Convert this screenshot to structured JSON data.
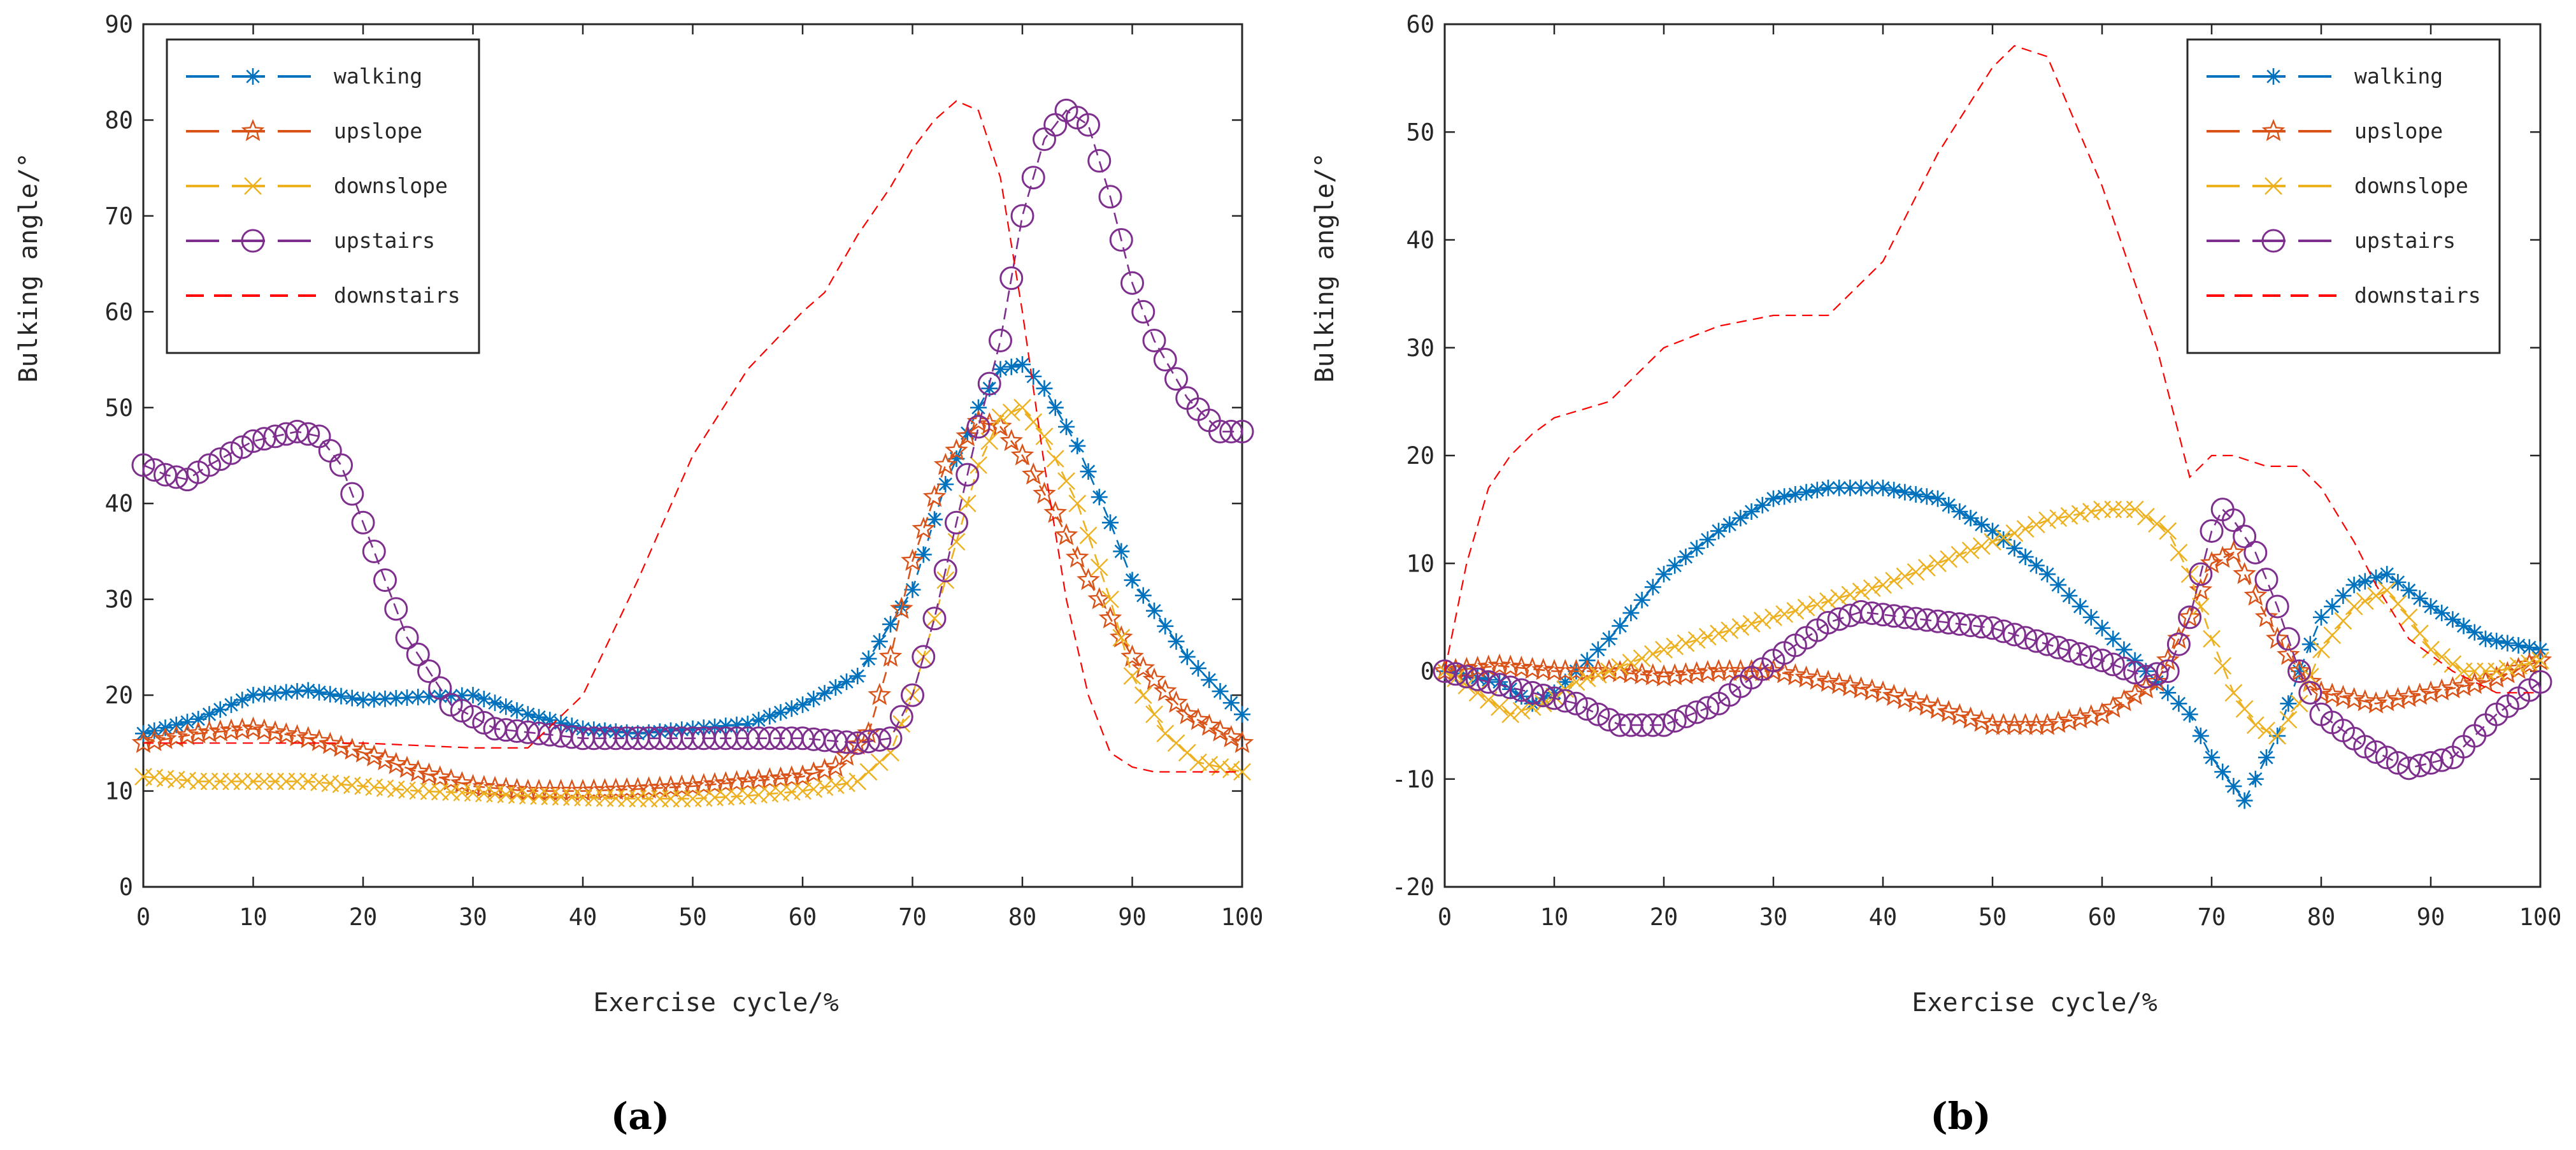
{
  "colors": {
    "walking": "#0072BD",
    "upslope": "#D95319",
    "downslope": "#EDB120",
    "upstairs": "#7E2F8E",
    "downstairs": "#FF0000",
    "axis": "#262626"
  },
  "chart_data": [
    {
      "type": "line",
      "panel_label": "(a)",
      "xlabel": "Exercise cycle/%",
      "ylabel": "Bulking angle/°",
      "xlim": [
        0,
        100
      ],
      "ylim": [
        0,
        90
      ],
      "xticks": [
        "0",
        "10",
        "20",
        "30",
        "40",
        "50",
        "60",
        "70",
        "80",
        "90",
        "100"
      ],
      "yticks": [
        "0",
        "10",
        "20",
        "30",
        "40",
        "50",
        "60",
        "70",
        "80",
        "90"
      ],
      "grid": false,
      "legend_position": "top-left",
      "series": [
        {
          "name": "walking",
          "marker": "asterisk",
          "line": "dashed",
          "x": [
            0,
            5,
            10,
            15,
            20,
            25,
            30,
            35,
            40,
            45,
            50,
            55,
            60,
            65,
            70,
            73,
            76,
            78,
            80,
            82,
            85,
            88,
            90,
            95,
            100
          ],
          "y": [
            16,
            17.5,
            20,
            20.5,
            19.5,
            19.8,
            20,
            18,
            16.5,
            16,
            16.5,
            17,
            19,
            22,
            31,
            42,
            50,
            54,
            54.5,
            52,
            46,
            38,
            32,
            24,
            18
          ]
        },
        {
          "name": "upslope",
          "marker": "pentagram",
          "line": "dashed",
          "x": [
            0,
            5,
            10,
            15,
            20,
            25,
            30,
            35,
            40,
            45,
            50,
            55,
            60,
            63,
            66,
            68,
            70,
            73,
            76,
            78,
            80,
            83,
            86,
            90,
            95,
            100
          ],
          "y": [
            15,
            16,
            16.5,
            15.5,
            14,
            12,
            10.5,
            10,
            10,
            10.2,
            10.5,
            11,
            11.5,
            12.5,
            16,
            24,
            34,
            44,
            48.5,
            48,
            45,
            39,
            32,
            24,
            18,
            15
          ]
        },
        {
          "name": "downslope",
          "marker": "x",
          "line": "dashed",
          "x": [
            0,
            5,
            10,
            15,
            20,
            25,
            30,
            35,
            40,
            45,
            50,
            55,
            60,
            65,
            68,
            70,
            73,
            76,
            78,
            80,
            82,
            85,
            88,
            90,
            93,
            96,
            100
          ],
          "y": [
            11.5,
            11,
            11,
            11,
            10.5,
            10,
            9.8,
            9.5,
            9.3,
            9.2,
            9.2,
            9.5,
            10,
            11,
            14,
            20,
            32,
            44,
            49,
            50,
            47,
            40,
            30,
            22,
            16,
            13,
            12
          ]
        },
        {
          "name": "upstairs",
          "marker": "circle",
          "line": "dashed",
          "x": [
            0,
            2,
            4,
            6,
            10,
            14,
            16,
            18,
            20,
            24,
            28,
            32,
            36,
            40,
            44,
            48,
            52,
            56,
            60,
            65,
            68,
            70,
            72,
            74,
            76,
            78,
            80,
            82,
            84,
            86,
            88,
            90,
            92,
            95,
            98,
            100
          ],
          "y": [
            44,
            43,
            42.5,
            44,
            46.5,
            47.5,
            47,
            44,
            38,
            26,
            19,
            16.5,
            16,
            15.5,
            15.5,
            15.5,
            15.5,
            15.5,
            15.5,
            15,
            15.5,
            20,
            28,
            38,
            48,
            57,
            70,
            78,
            81,
            79.5,
            72,
            63,
            57,
            51,
            47.5,
            47.5
          ]
        },
        {
          "name": "downstairs",
          "marker": "none",
          "line": "dashed",
          "x": [
            0,
            10,
            20,
            30,
            35,
            40,
            45,
            50,
            55,
            60,
            62,
            65,
            68,
            70,
            72,
            74,
            76,
            78,
            80,
            82,
            84,
            86,
            88,
            90,
            92,
            95,
            100
          ],
          "y": [
            15,
            15,
            15,
            14.5,
            14.5,
            20,
            32,
            45,
            54,
            60,
            62,
            68,
            73,
            77,
            80,
            82,
            81,
            74,
            60,
            44,
            30,
            20,
            14,
            12.5,
            12,
            12,
            12
          ]
        }
      ]
    },
    {
      "type": "line",
      "panel_label": "(b)",
      "xlabel": "Exercise cycle/%",
      "ylabel": "Bulking angle/°",
      "xlim": [
        0,
        100
      ],
      "ylim": [
        -20,
        60
      ],
      "xticks": [
        "0",
        "10",
        "20",
        "30",
        "40",
        "50",
        "60",
        "70",
        "80",
        "90",
        "100"
      ],
      "yticks": [
        "-20",
        "-10",
        "0",
        "10",
        "20",
        "30",
        "40",
        "50",
        "60"
      ],
      "grid": false,
      "legend_position": "top-right",
      "series": [
        {
          "name": "walking",
          "marker": "asterisk",
          "line": "dashed",
          "x": [
            0,
            5,
            8,
            10,
            15,
            20,
            25,
            30,
            35,
            40,
            45,
            50,
            55,
            60,
            65,
            68,
            70,
            73,
            76,
            78,
            80,
            83,
            86,
            90,
            95,
            100
          ],
          "y": [
            0,
            -1,
            -3,
            -2,
            3,
            9,
            13,
            16,
            17,
            17,
            16,
            13,
            9,
            4,
            -1,
            -4,
            -8,
            -12,
            -6,
            0,
            5,
            8,
            9,
            6,
            3,
            2
          ]
        },
        {
          "name": "upslope",
          "marker": "pentagram",
          "line": "dashed",
          "x": [
            0,
            5,
            10,
            15,
            20,
            25,
            30,
            35,
            40,
            45,
            50,
            55,
            60,
            65,
            68,
            70,
            72,
            74,
            76,
            78,
            80,
            85,
            90,
            95,
            100
          ],
          "y": [
            0,
            0.5,
            0,
            0,
            -0.5,
            0,
            0,
            -1,
            -2,
            -3.5,
            -5,
            -5,
            -4,
            -1,
            5,
            10,
            11,
            7,
            3,
            0,
            -2,
            -3,
            -2,
            -1,
            1
          ]
        },
        {
          "name": "downslope",
          "marker": "x",
          "line": "dashed",
          "x": [
            0,
            3,
            6,
            9,
            12,
            15,
            20,
            25,
            30,
            35,
            40,
            45,
            50,
            55,
            60,
            63,
            66,
            68,
            70,
            72,
            74,
            76,
            78,
            80,
            83,
            86,
            88,
            90,
            93,
            96,
            100
          ],
          "y": [
            0,
            -2,
            -4,
            -3,
            -1,
            0,
            2,
            3.5,
            5,
            6.5,
            8,
            10,
            12,
            14,
            15,
            15,
            13,
            9,
            3,
            -2,
            -5,
            -6,
            -3,
            2,
            6,
            7.5,
            5,
            2,
            0,
            0,
            1
          ]
        },
        {
          "name": "upstairs",
          "marker": "circle",
          "line": "dashed",
          "x": [
            0,
            4,
            8,
            12,
            16,
            20,
            25,
            30,
            35,
            38,
            42,
            46,
            50,
            55,
            60,
            64,
            66,
            68,
            70,
            71,
            72,
            74,
            76,
            78,
            80,
            84,
            88,
            92,
            96,
            100
          ],
          "y": [
            0,
            -1,
            -2,
            -3,
            -5,
            -5,
            -3,
            1,
            4.5,
            5.5,
            5,
            4.5,
            4,
            2.5,
            1,
            -0.5,
            0,
            5,
            13,
            15,
            14,
            11,
            6,
            0,
            -4,
            -7,
            -9,
            -8,
            -4,
            -1
          ]
        },
        {
          "name": "downstairs",
          "marker": "none",
          "line": "dashed",
          "x": [
            0,
            2,
            4,
            6,
            8,
            10,
            15,
            20,
            25,
            30,
            35,
            40,
            45,
            50,
            52,
            55,
            60,
            65,
            68,
            70,
            72,
            75,
            78,
            80,
            83,
            85,
            88,
            92,
            96,
            100
          ],
          "y": [
            0,
            10,
            17,
            20,
            22,
            23.5,
            25,
            30,
            32,
            33,
            33,
            38,
            48,
            56,
            58,
            57,
            45,
            30,
            18,
            20,
            20,
            19,
            19,
            17,
            12,
            8,
            3,
            0,
            -2,
            -2
          ]
        }
      ]
    }
  ]
}
